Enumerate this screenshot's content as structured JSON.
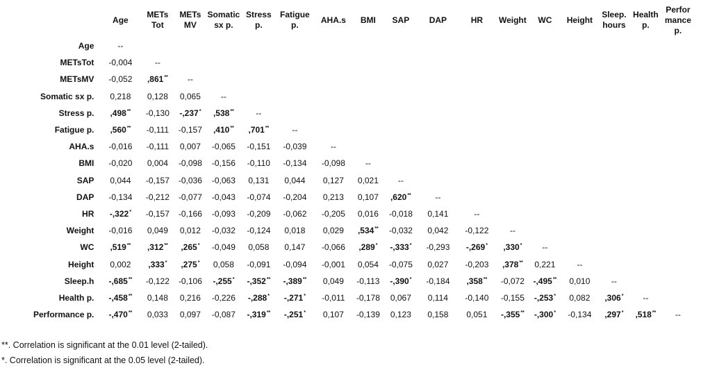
{
  "columns": [
    "Age",
    "METs Tot",
    "METs MV",
    "Somatic sx p.",
    "Stress p.",
    "Fatigue p.",
    "AHA.s",
    "BMI",
    "SAP",
    "DAP",
    "HR",
    "Weight",
    "WC",
    "Height",
    "Sleep. hours",
    "Health p.",
    "Perfor mance p."
  ],
  "rows": [
    {
      "label": "Age",
      "cells": [
        "--"
      ]
    },
    {
      "label": "METsTot",
      "cells": [
        "-0,004",
        "--"
      ]
    },
    {
      "label": "METsMV",
      "cells": [
        "-0,052",
        ",861**",
        "--"
      ]
    },
    {
      "label": "Somatic sx p.",
      "cells": [
        "0,218",
        "0,128",
        "0,065",
        "--"
      ]
    },
    {
      "label": "Stress p.",
      "cells": [
        ",498**",
        "-0,130",
        "-,237*",
        ",538**",
        "--"
      ]
    },
    {
      "label": "Fatigue p.",
      "cells": [
        ",560**",
        "-0,111",
        "-0,157",
        ",410**",
        ",701**",
        "--"
      ]
    },
    {
      "label": "AHA.s",
      "cells": [
        "-0,016",
        "-0,111",
        "0,007",
        "-0,065",
        "-0,151",
        "-0,039",
        "--"
      ]
    },
    {
      "label": "BMI",
      "cells": [
        "-0,020",
        "0,004",
        "-0,098",
        "-0,156",
        "-0,110",
        "-0,134",
        "-0,098",
        "--"
      ]
    },
    {
      "label": "SAP",
      "cells": [
        "0,044",
        "-0,157",
        "-0,036",
        "-0,063",
        "0,131",
        "0,044",
        "0,127",
        "0,021",
        "--"
      ]
    },
    {
      "label": "DAP",
      "cells": [
        "-0,134",
        "-0,212",
        "-0,077",
        "-0,043",
        "-0,074",
        "-0,204",
        "0,213",
        "0,107",
        ",620**",
        "--"
      ]
    },
    {
      "label": "HR",
      "cells": [
        "-,322*",
        "-0,157",
        "-0,166",
        "-0,093",
        "-0,209",
        "-0,062",
        "-0,205",
        "0,016",
        "-0,018",
        "0,141",
        "--"
      ]
    },
    {
      "label": "Weight",
      "cells": [
        "-0,016",
        "0,049",
        "0,012",
        "-0,032",
        "-0,124",
        "0,018",
        "0,029",
        ",534**",
        "-0,032",
        "0,042",
        "-0,122",
        "--"
      ]
    },
    {
      "label": "WC",
      "cells": [
        ",519**",
        ",312**",
        ",265*",
        "-0,049",
        "0,058",
        "0,147",
        "-0,066",
        ",289*",
        "-,333*",
        "-0,293",
        "-,269*",
        ",330*",
        "--"
      ]
    },
    {
      "label": "Height",
      "cells": [
        "0,002",
        ",333*",
        ",275*",
        "0,058",
        "-0,091",
        "-0,094",
        "-0,001",
        "0,054",
        "-0,075",
        "0,027",
        "-0,203",
        ",378**",
        "0,221",
        "--"
      ]
    },
    {
      "label": "Sleep.h",
      "cells": [
        "-,685**",
        "-0,122",
        "-0,106",
        "-,255*",
        "-,352**",
        "-,389**",
        "0,049",
        "-0,113",
        "-,390*",
        "-0,184",
        ",358**",
        "-0,072",
        "-,495**",
        "0,010",
        "--"
      ]
    },
    {
      "label": "Health p.",
      "cells": [
        "-,458**",
        "0,148",
        "0,216",
        "-0,226",
        "-,288*",
        "-,271*",
        "-0,011",
        "-0,178",
        "0,067",
        "0,114",
        "-0,140",
        "-0,155",
        "-,253*",
        "0,082",
        ",306*",
        "--"
      ]
    },
    {
      "label": "Performance p.",
      "cells": [
        "-,470**",
        "0,033",
        "0,097",
        "-0,087",
        "-,319**",
        "-,251*",
        "0,107",
        "-0,139",
        "0,123",
        "0,158",
        "0,051",
        "-,355**",
        "-,300*",
        "-0,134",
        ",297*",
        ",518**",
        "--"
      ]
    }
  ],
  "notes": [
    "**. Correlation is significant at the 0.01 level (2-tailed).",
    "*. Correlation is significant at the 0.05 level (2-tailed)."
  ]
}
